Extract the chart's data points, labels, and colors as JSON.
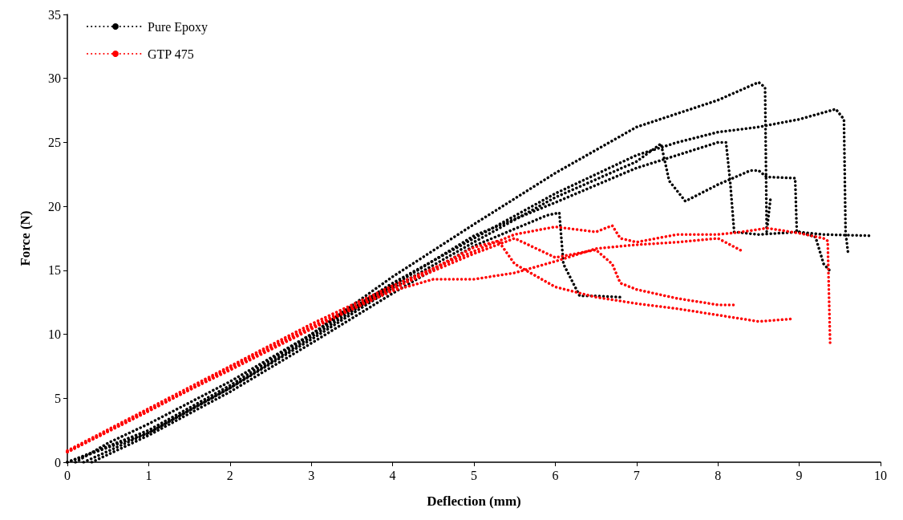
{
  "chart_data": {
    "type": "line",
    "xlabel": "Deflection (mm)",
    "ylabel": "Force (N)",
    "xlim": [
      0,
      10
    ],
    "ylim": [
      0,
      35
    ],
    "xticks": [
      0,
      1,
      2,
      3,
      4,
      5,
      6,
      7,
      8,
      9,
      10
    ],
    "yticks": [
      0,
      5,
      10,
      15,
      20,
      25,
      30,
      35
    ],
    "grid": false,
    "legend": "top left",
    "marker": "none",
    "line_style": "dotted",
    "series": [
      {
        "name": "Pure Epoxy",
        "color": "#000000",
        "x": [
          0.1,
          0.5,
          1,
          2,
          3,
          4,
          5,
          6,
          7,
          8,
          8.5,
          8.58,
          8.6,
          8.65
        ],
        "values": [
          0,
          1.5,
          3,
          6.3,
          10,
          14.5,
          18.6,
          22.6,
          26.2,
          28.3,
          29.7,
          29.3,
          18,
          20.8
        ]
      },
      {
        "color": "#000000",
        "x": [
          0,
          1,
          2,
          3,
          4,
          5,
          6,
          7,
          7.5,
          8,
          8.5,
          9,
          9.45,
          9.55,
          9.57,
          9.6
        ],
        "values": [
          0,
          2.5,
          6,
          10,
          14,
          17.5,
          21,
          24,
          25,
          25.8,
          26.2,
          26.8,
          27.6,
          26.8,
          18,
          16.4
        ]
      },
      {
        "color": "#000000",
        "x": [
          0.2,
          1,
          2,
          3,
          4,
          5,
          6,
          7,
          7.3,
          7.4,
          7.6,
          8,
          8.4,
          8.5,
          8.6,
          8.95,
          8.97,
          9.3,
          9.9
        ],
        "values": [
          0,
          2.3,
          5.8,
          9.6,
          13.6,
          17.2,
          20.7,
          23.5,
          24.9,
          22,
          20.4,
          21.7,
          22.8,
          22.8,
          22.3,
          22.2,
          18,
          17.8,
          17.7
        ]
      },
      {
        "color": "#000000",
        "x": [
          0.3,
          1,
          2,
          3,
          4,
          5,
          5.9,
          6.05,
          6.1,
          6.3,
          6.5,
          6.8
        ],
        "values": [
          0,
          2.1,
          5.5,
          9.3,
          13.2,
          16.9,
          19.3,
          19.5,
          15.5,
          13,
          13,
          12.9
        ]
      },
      {
        "color": "#000000",
        "x": [
          0,
          1,
          2,
          3,
          4,
          5,
          6,
          7,
          8,
          8.1,
          8.15,
          8.2,
          8.5,
          9,
          9.2,
          9.3,
          9.4
        ],
        "values": [
          0,
          2.3,
          5.8,
          9.8,
          13.8,
          17.7,
          20.3,
          23,
          25,
          25,
          22,
          18,
          17.8,
          18,
          17.6,
          15.5,
          14.8
        ]
      },
      {
        "name": "GTP 475",
        "color": "#ff0000",
        "x": [
          0,
          1,
          2,
          3,
          4,
          5,
          5.5,
          6,
          6.5,
          6.7,
          6.8,
          7,
          7.5,
          8,
          8.3,
          8.6,
          9,
          9.3,
          9.35,
          9.37,
          9.38
        ],
        "values": [
          0.9,
          4.2,
          7.5,
          10.8,
          13.8,
          16.5,
          17.8,
          18.4,
          18,
          18.5,
          17.5,
          17.2,
          17.8,
          17.8,
          18,
          18.3,
          17.9,
          17.5,
          17.3,
          12,
          9.3
        ]
      },
      {
        "color": "#ff0000",
        "x": [
          0,
          1,
          2,
          3,
          4,
          5,
          5.5,
          6,
          6.5,
          6.7,
          6.8,
          7,
          7.5,
          8,
          8.2
        ],
        "values": [
          0.8,
          4,
          7.4,
          10.6,
          13.6,
          16.3,
          17.5,
          16,
          16.6,
          15.5,
          14,
          13.5,
          12.8,
          12.3,
          12.3
        ]
      },
      {
        "color": "#ff0000",
        "x": [
          0,
          1,
          2,
          3,
          4,
          4.5,
          5,
          5.5,
          6,
          6.5,
          7,
          7.5,
          8,
          8.3
        ],
        "values": [
          0.8,
          4,
          7.3,
          10.5,
          13.4,
          14.3,
          14.3,
          14.8,
          15.7,
          16.7,
          17,
          17.2,
          17.5,
          16.5
        ]
      },
      {
        "color": "#ff0000",
        "x": [
          0,
          1,
          2,
          3,
          4,
          5,
          5.3,
          5.5,
          6,
          6.5,
          7,
          7.5,
          8,
          8.5,
          8.9
        ],
        "values": [
          0.8,
          4.1,
          7.2,
          10.4,
          13.5,
          16.8,
          17.3,
          15.5,
          13.7,
          12.9,
          12.4,
          12,
          11.5,
          11,
          11.2
        ]
      }
    ]
  }
}
